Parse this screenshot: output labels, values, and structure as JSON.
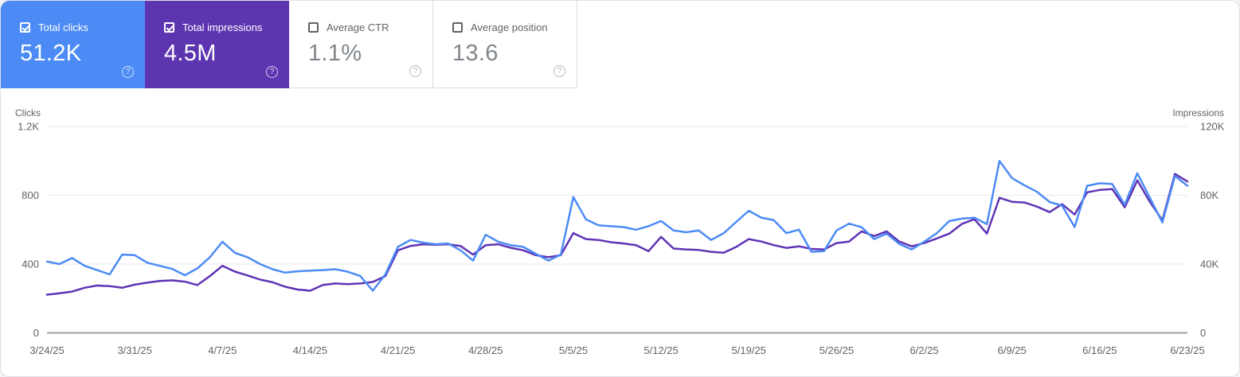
{
  "cards": [
    {
      "label": "Total clicks",
      "value": "51.2K",
      "checked": true,
      "bg": "#4c8bf5"
    },
    {
      "label": "Total impressions",
      "value": "4.5M",
      "checked": true,
      "bg": "#5e35b1"
    },
    {
      "label": "Average CTR",
      "value": "1.1%",
      "checked": false,
      "bg": "#ffffff"
    },
    {
      "label": "Average position",
      "value": "13.6",
      "checked": false,
      "bg": "#ffffff"
    }
  ],
  "chart_data": {
    "type": "line",
    "x_tick_labels": [
      "3/24/25",
      "3/31/25",
      "4/7/25",
      "4/14/25",
      "4/21/25",
      "4/28/25",
      "5/5/25",
      "5/12/25",
      "5/19/25",
      "5/26/25",
      "6/2/25",
      "6/9/25",
      "6/16/25",
      "6/23/25"
    ],
    "x_tick_every": 7,
    "left_axis": {
      "title": "Clicks",
      "max": 1200,
      "ticks": [
        {
          "v": 1200,
          "label": "1.2K"
        },
        {
          "v": 800,
          "label": "800"
        },
        {
          "v": 400,
          "label": "400"
        },
        {
          "v": 0,
          "label": "0"
        }
      ]
    },
    "right_axis": {
      "title": "Impressions",
      "max": 120000,
      "ticks": [
        {
          "v": 120000,
          "label": "120K"
        },
        {
          "v": 80000,
          "label": "80K"
        },
        {
          "v": 40000,
          "label": "40K"
        },
        {
          "v": 0,
          "label": "0"
        }
      ]
    },
    "grid": "horizontal",
    "legend": "cards-act-as-legend",
    "series": [
      {
        "name": "Total clicks",
        "axis": "left",
        "color": "#4c8bf5",
        "values": [
          415,
          400,
          435,
          390,
          365,
          340,
          455,
          452,
          408,
          390,
          372,
          335,
          375,
          440,
          530,
          465,
          440,
          400,
          370,
          350,
          358,
          362,
          365,
          370,
          355,
          330,
          245,
          340,
          500,
          540,
          525,
          515,
          520,
          480,
          420,
          570,
          530,
          510,
          500,
          460,
          420,
          455,
          790,
          660,
          625,
          620,
          615,
          600,
          620,
          650,
          595,
          585,
          595,
          540,
          580,
          645,
          710,
          670,
          655,
          580,
          600,
          471,
          475,
          595,
          635,
          614,
          545,
          577,
          517,
          485,
          530,
          580,
          650,
          664,
          669,
          632,
          1000,
          900,
          858,
          820,
          761,
          740,
          615,
          855,
          870,
          865,
          745,
          928,
          785,
          642,
          912,
          855
        ]
      },
      {
        "name": "Total impressions",
        "axis": "right",
        "color": "#5f33b5",
        "values": [
          22200,
          23000,
          24000,
          26200,
          27500,
          27200,
          26200,
          28000,
          29200,
          30200,
          30500,
          29800,
          27800,
          33000,
          39000,
          35600,
          33400,
          31000,
          29400,
          26800,
          25200,
          24500,
          27800,
          28700,
          28300,
          28700,
          29600,
          33000,
          48000,
          50500,
          51500,
          51200,
          51500,
          50500,
          45500,
          51000,
          51500,
          49500,
          48000,
          45200,
          44000,
          45200,
          58000,
          54500,
          54000,
          52700,
          52000,
          51000,
          47500,
          55800,
          49000,
          48500,
          48200,
          47100,
          46600,
          50000,
          54500,
          53100,
          51000,
          49400,
          50300,
          48800,
          48500,
          52200,
          53100,
          59000,
          56300,
          59000,
          53100,
          50300,
          52200,
          54900,
          57700,
          63300,
          66100,
          57700,
          78500,
          76200,
          75800,
          73400,
          70200,
          74800,
          68800,
          81700,
          83100,
          83600,
          73000,
          88700,
          76200,
          65500,
          92400,
          88000
        ]
      }
    ],
    "colors": {
      "grid": "#e8eaed",
      "zero_line": "#9aa0a6",
      "tick_text": "#5f6368"
    }
  }
}
